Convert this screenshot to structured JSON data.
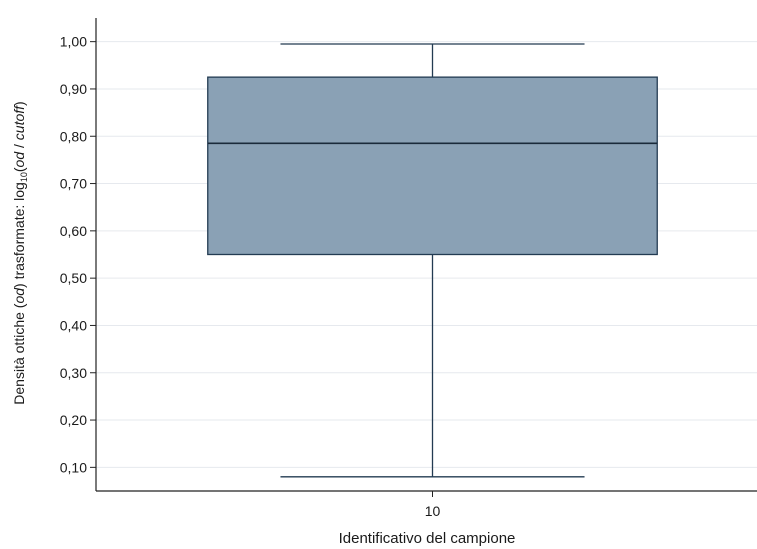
{
  "chart_data": {
    "type": "box",
    "xlabel": "Identificativo del campione",
    "ylabel": {
      "prefix": "Densità ottiche (",
      "od_italic": "od",
      "middle": ") trasformate: log",
      "subscript": "10",
      "paren_open": "(",
      "od_italic_2": "od",
      "slash": " / ",
      "cutoff_italic": "cutoff",
      "paren_close": ")"
    },
    "categories": [
      "10"
    ],
    "boxes": [
      {
        "category": "10",
        "whisker_low": 0.08,
        "q1": 0.55,
        "median": 0.785,
        "q3": 0.925,
        "whisker_high": 0.995
      }
    ],
    "y_ticks": [
      0.1,
      0.2,
      0.3,
      0.4,
      0.5,
      0.6,
      0.7,
      0.8,
      0.9,
      1.0
    ],
    "y_tick_labels": [
      "0,10",
      "0,20",
      "0,30",
      "0,40",
      "0,50",
      "0,60",
      "0,70",
      "0,80",
      "0,90",
      "1,00"
    ],
    "ylim": [
      0.05,
      1.05
    ],
    "grid": true,
    "colors": {
      "box_fill": "#8aa1b5",
      "box_stroke": "#233b52",
      "grid": "#e6e9ee",
      "axis": "#222222"
    }
  }
}
